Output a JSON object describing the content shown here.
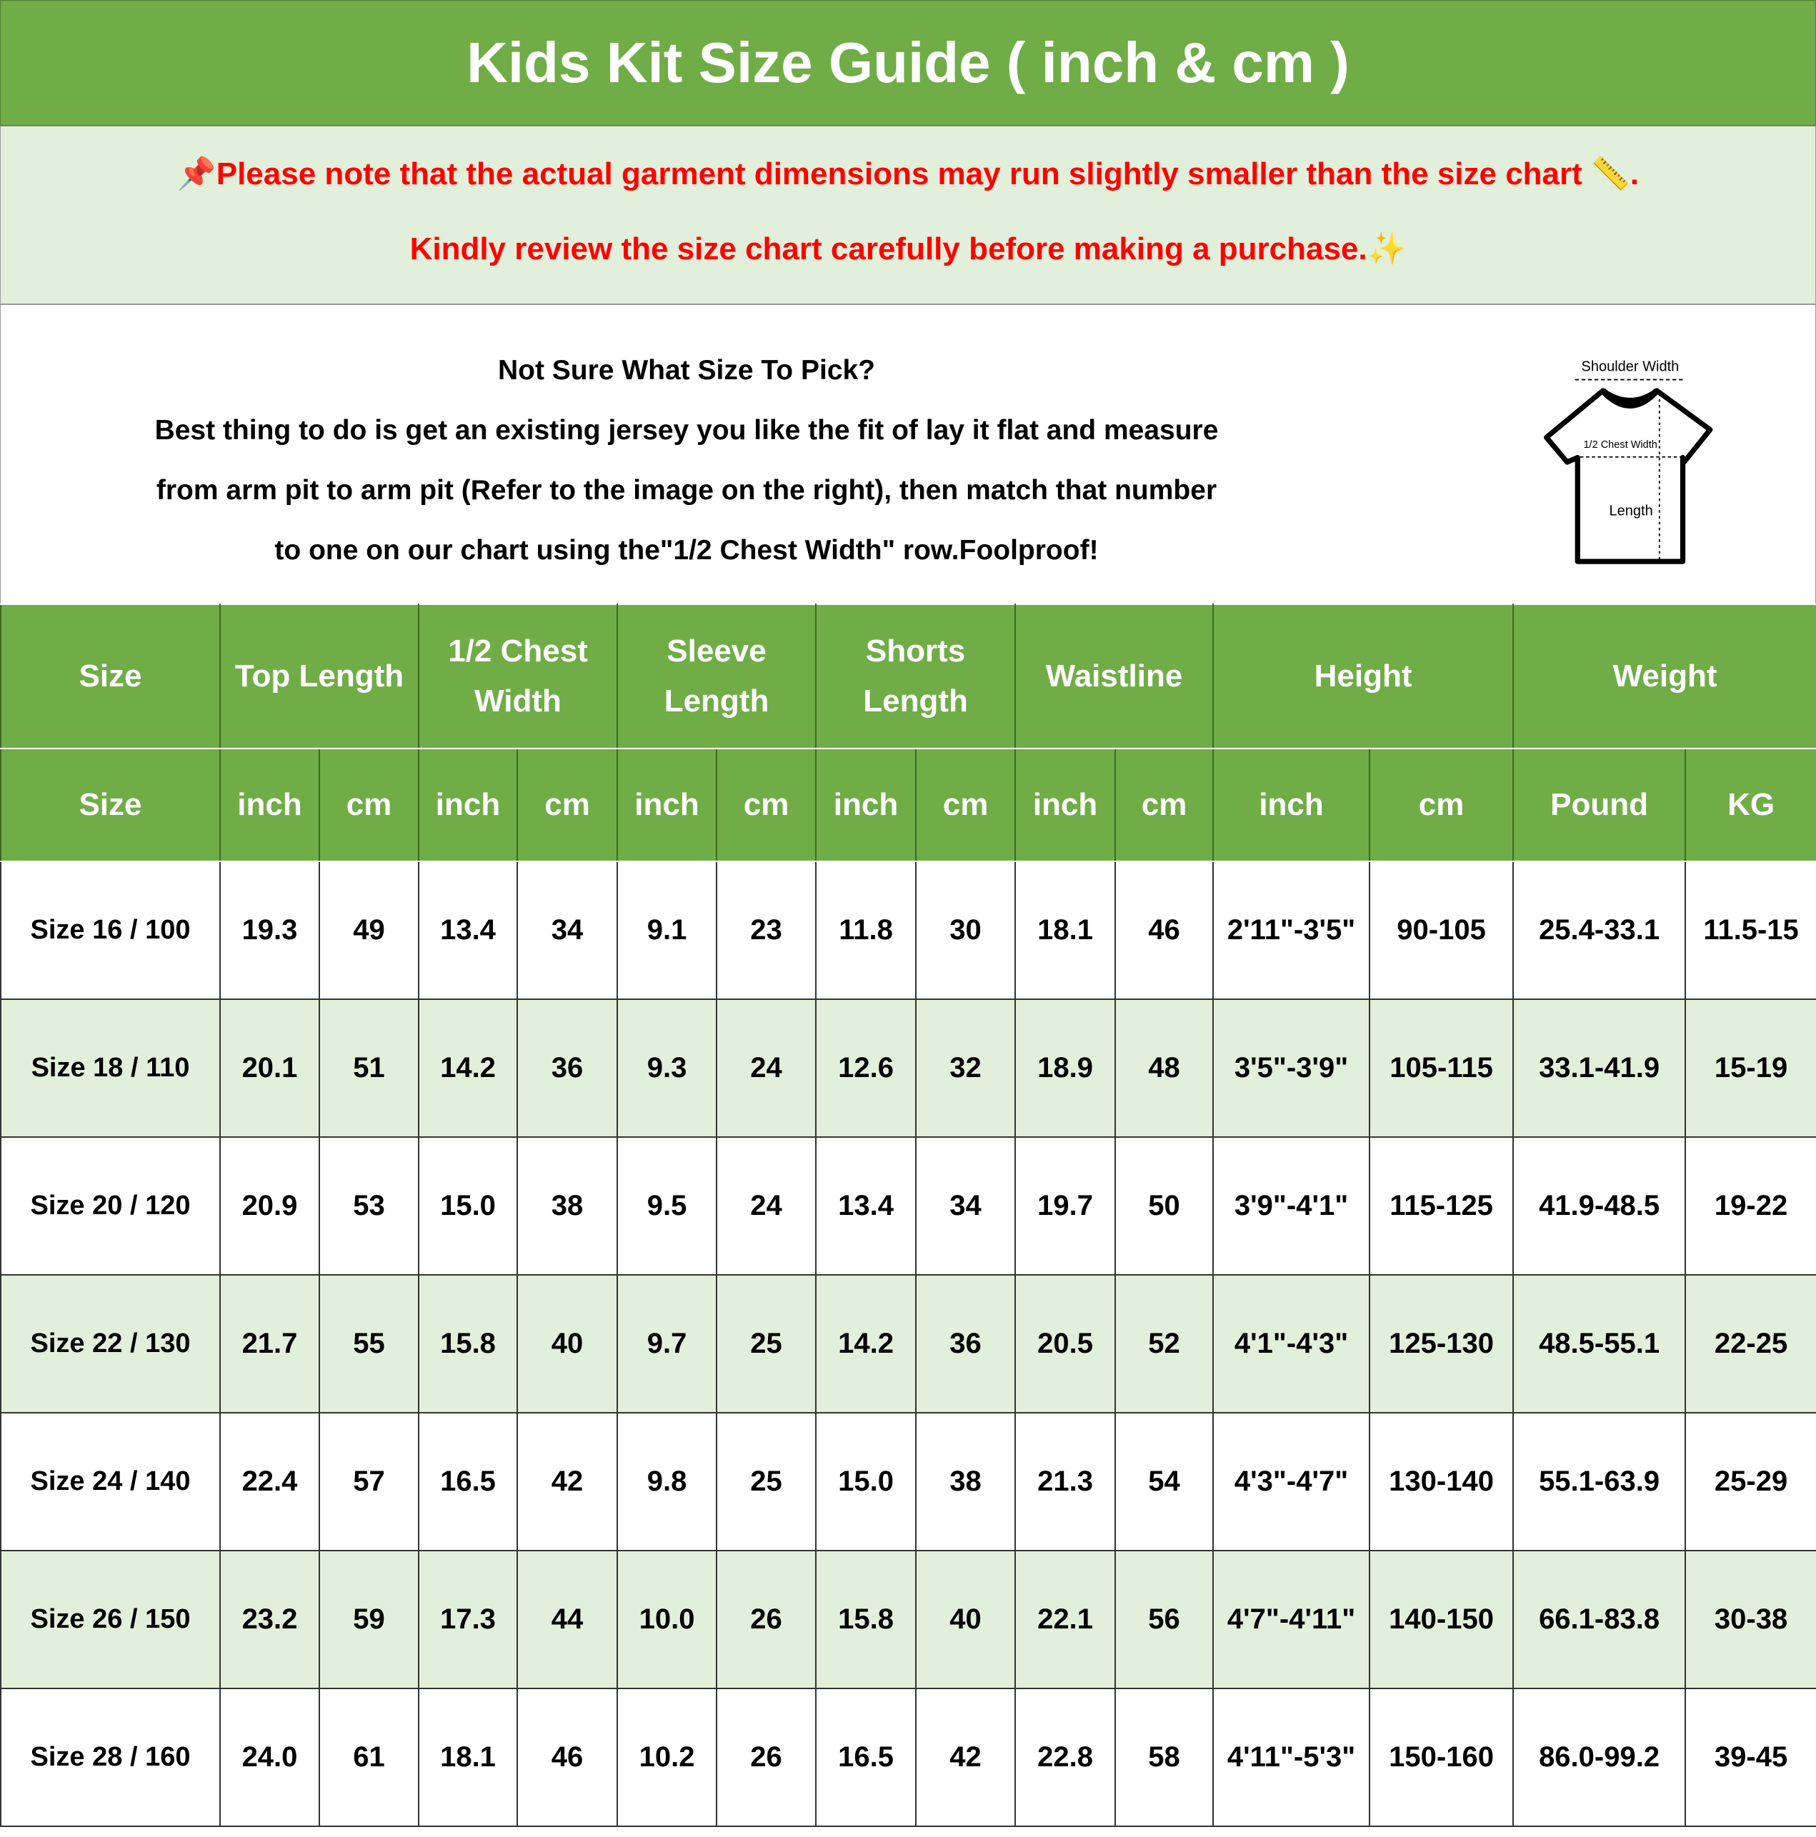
{
  "title": "Kids Kit Size Guide ( inch & cm )",
  "note": {
    "line1": "Please note that the actual garment dimensions may run slightly smaller than the size chart",
    "line1_end": ".",
    "line2": "Kindly review the size chart carefully before making a purchase.",
    "icons": [
      "pushpin-icon",
      "ruler-icon",
      "sparkles-icon"
    ],
    "color": "#ff0000"
  },
  "info": {
    "heading": "Not Sure What Size To Pick?",
    "line1": "Best thing to do is get an existing jersey you like the fit of lay it flat and measure",
    "line2": "from arm pit to arm pit (Refer to the image on the right), then match that number",
    "line3": "to one on our chart using the\"1/2 Chest Width\" row.Foolproof!"
  },
  "diagram": {
    "shoulder": "Shoulder Width",
    "chest": "1/2 Chest Width",
    "length": "Length"
  },
  "colors": {
    "header": "#70ad47",
    "alt_row": "#e2efda"
  },
  "table": {
    "groups": [
      "Size",
      "Top Length",
      "1/2 Chest Width",
      "Sleeve Length",
      "Shorts Length",
      "Waistline",
      "Height",
      "Weight"
    ],
    "subheaders": [
      "Size",
      "inch",
      "cm",
      "inch",
      "cm",
      "inch",
      "cm",
      "inch",
      "cm",
      "inch",
      "cm",
      "inch",
      "cm",
      "Pound",
      "KG"
    ],
    "rows": [
      [
        "Size 16 / 100",
        "19.3",
        "49",
        "13.4",
        "34",
        "9.1",
        "23",
        "11.8",
        "30",
        "18.1",
        "46",
        "2'11\"-3'5\"",
        "90-105",
        "25.4-33.1",
        "11.5-15"
      ],
      [
        "Size 18 / 110",
        "20.1",
        "51",
        "14.2",
        "36",
        "9.3",
        "24",
        "12.6",
        "32",
        "18.9",
        "48",
        "3'5\"-3'9\"",
        "105-115",
        "33.1-41.9",
        "15-19"
      ],
      [
        "Size 20 / 120",
        "20.9",
        "53",
        "15.0",
        "38",
        "9.5",
        "24",
        "13.4",
        "34",
        "19.7",
        "50",
        "3'9\"-4'1\"",
        "115-125",
        "41.9-48.5",
        "19-22"
      ],
      [
        "Size 22 / 130",
        "21.7",
        "55",
        "15.8",
        "40",
        "9.7",
        "25",
        "14.2",
        "36",
        "20.5",
        "52",
        "4'1\"-4'3\"",
        "125-130",
        "48.5-55.1",
        "22-25"
      ],
      [
        "Size 24 / 140",
        "22.4",
        "57",
        "16.5",
        "42",
        "9.8",
        "25",
        "15.0",
        "38",
        "21.3",
        "54",
        "4'3\"-4'7\"",
        "130-140",
        "55.1-63.9",
        "25-29"
      ],
      [
        "Size 26 / 150",
        "23.2",
        "59",
        "17.3",
        "44",
        "10.0",
        "26",
        "15.8",
        "40",
        "22.1",
        "56",
        "4'7\"-4'11\"",
        "140-150",
        "66.1-83.8",
        "30-38"
      ],
      [
        "Size 28 / 160",
        "24.0",
        "61",
        "18.1",
        "46",
        "10.2",
        "26",
        "16.5",
        "42",
        "22.8",
        "58",
        "4'11\"-5'3\"",
        "150-160",
        "86.0-99.2",
        "39-45"
      ]
    ]
  }
}
